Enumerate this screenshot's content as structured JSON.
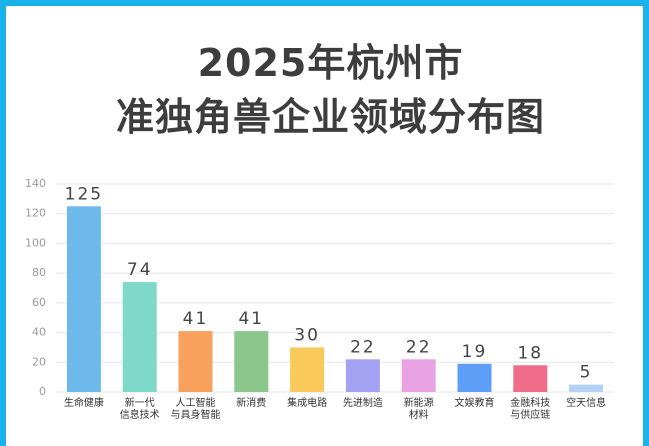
{
  "chart_data": {
    "type": "bar",
    "title": "2025年杭州市\n准独角兽企业领域分布图",
    "categories": [
      "生命健康",
      "新一代\n信息技术",
      "人工智能\n与具身智能",
      "新消费",
      "集成电路",
      "先进制造",
      "新能源\n材料",
      "文娱教育",
      "金融科技\n与供应链",
      "空天信息"
    ],
    "values": [
      125,
      74,
      41,
      41,
      30,
      22,
      22,
      19,
      18,
      5
    ],
    "colors": [
      "#6cb9ea",
      "#7fd9c9",
      "#f7a15c",
      "#8bc68d",
      "#f9c95c",
      "#a3a2f2",
      "#e9a2e2",
      "#5d9ef6",
      "#ef6d89",
      "#b3d1f2"
    ],
    "ylim": [
      0,
      140
    ],
    "yticks": [
      0,
      20,
      40,
      60,
      80,
      100,
      120,
      140
    ],
    "grid": true
  }
}
